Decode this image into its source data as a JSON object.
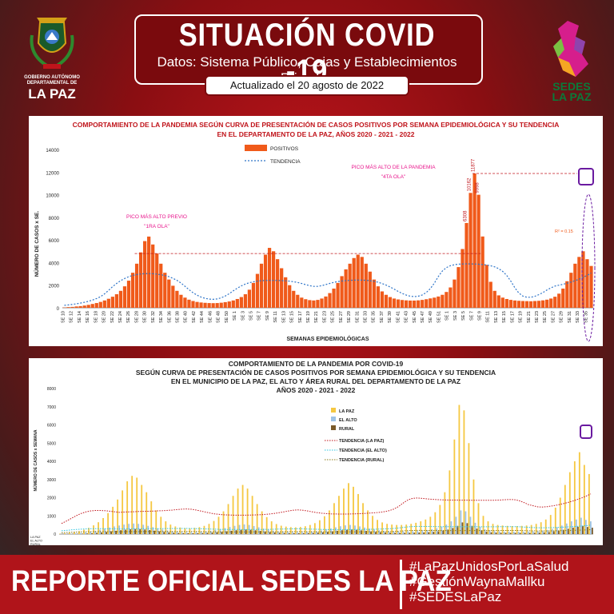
{
  "header": {
    "title": "SITUACIÓN COVID -19",
    "subtitle": "Datos: Sistema Público, Cajas y Establecimientos Privados",
    "updated": "Actualizado el  20  agosto de 2022"
  },
  "left_logo": {
    "caption_1": "GOBIERNO AUTÓNOMO",
    "caption_2": "DEPARTAMENTAL DE",
    "name": "LA PAZ"
  },
  "right_logo": {
    "name_1": "SEDES",
    "name_2": "LA PAZ"
  },
  "footer": {
    "text": "REPORTE OFICIAL SEDES LA PAZ",
    "hashtags": [
      "#LaPazUnidosPorLaSalud",
      "#GestiónWaynaMallku",
      "#SEDESLaPaz"
    ]
  },
  "colors": {
    "bg_red": "#c0141b",
    "bar_orange": "#f05a1a",
    "bar_yellow": "#f5c842",
    "bar_blue": "#9ec3e6",
    "bar_brown": "#7a5a2a",
    "annotation_pink": "#e8158c",
    "trend_blue": "#2e74c8"
  },
  "chart_data": [
    {
      "type": "bar",
      "title_1": "COMPORTAMIENTO DE LA PANDEMIA SEGÚN CURVA DE PRESENTACIÓN DE CASOS POSITIVOS POR SEMANA EPIDEMIOLÓGICA Y SU TENDENCIA",
      "title_2": "EN EL DEPARTAMENTO DE LA PAZ, AÑOS 2020 - 2021 - 2022",
      "ylabel": "NÚMERO DE CASOS x SE.",
      "xlabel": "SEMANAS EPIDEMIOLÓGICAS",
      "ylim": [
        0,
        14000
      ],
      "yticks": [
        0,
        2000,
        4000,
        6000,
        8000,
        10000,
        12000,
        14000
      ],
      "legend": {
        "bars": "POSITIVOS",
        "trend": "TENDENCIA"
      },
      "annotations": {
        "peak1_line1": "PICO MÁS ALTO PREVIO",
        "peak1_line2": "\"1RA OLA\"",
        "peak4_line1": "PICO MÁS ALTO DE LA PANDEMIA",
        "peak4_line2": "\"4TA OLA\"",
        "r2": "R² = 0.15",
        "peak_value": "11877",
        "peak_value_2": "10162",
        "peak_value_3": "9998",
        "peak_value_4": "6308"
      },
      "x_tick_labels": [
        "SE 10",
        "SE 12",
        "SE 14",
        "SE 16",
        "SE 18",
        "SE 20",
        "SE 22",
        "SE 24",
        "SE 26",
        "SE 28",
        "SE 30",
        "SE 32",
        "SE 34",
        "SE 36",
        "SE 38",
        "SE 40",
        "SE 42",
        "SE 44",
        "SE 46",
        "SE 48",
        "SE 50",
        "SE 1",
        "SE 3",
        "SE 5",
        "SE 7",
        "SE 9",
        "SE 11",
        "SE 13",
        "SE 15",
        "SE 17",
        "SE 19",
        "SE 21",
        "SE 23",
        "SE 25",
        "SE 27",
        "SE 29",
        "SE 31",
        "SE 33",
        "SE 35",
        "SE 37",
        "SE 39",
        "SE 41",
        "SE 43",
        "SE 45",
        "SE 47",
        "SE 49",
        "SE 51",
        "SE 1",
        "SE 3",
        "SE 5",
        "SE 7",
        "SE 9",
        "SE 11",
        "SE 13",
        "SE 15",
        "SE 17",
        "SE 19",
        "SE 21",
        "SE 23",
        "SE 25",
        "SE 27",
        "SE 29",
        "SE 31",
        "SE 33",
        "SE 35"
      ],
      "values": [
        30,
        60,
        80,
        120,
        150,
        200,
        260,
        340,
        420,
        520,
        650,
        800,
        980,
        1200,
        1500,
        1900,
        2400,
        3100,
        3900,
        4900,
        5900,
        6300,
        5600,
        4800,
        3900,
        3100,
        2500,
        1950,
        1500,
        1150,
        900,
        720,
        600,
        520,
        470,
        440,
        420,
        410,
        420,
        450,
        500,
        560,
        650,
        780,
        950,
        1200,
        1600,
        2200,
        3000,
        3900,
        4700,
        5300,
        5000,
        4300,
        3500,
        2700,
        2000,
        1500,
        1150,
        900,
        760,
        680,
        650,
        700,
        820,
        1000,
        1300,
        1700,
        2200,
        2800,
        3400,
        3900,
        4400,
        4700,
        4500,
        3900,
        3200,
        2500,
        1900,
        1450,
        1150,
        950,
        820,
        740,
        690,
        660,
        640,
        640,
        660,
        700,
        760,
        830,
        900,
        1000,
        1150,
        1400,
        1800,
        2500,
        3600,
        5200,
        7500,
        10162,
        11877,
        9998,
        6308,
        3800,
        2300,
        1500,
        1100,
        900,
        780,
        700,
        650,
        620,
        600,
        590,
        580,
        600,
        620,
        660,
        720,
        820,
        980,
        1250,
        1700,
        2350,
        3100,
        3900,
        4500,
        5000,
        4300,
        3700
      ]
    },
    {
      "type": "bar",
      "title_1": "COMPORTAMIENTO DE LA PANDEMIA POR COVID-19",
      "title_2": "SEGÚN CURVA DE PRESENTACIÓN DE CASOS POSITIVOS POR SEMANA EPIDEMIOLÓGICA Y SU TENDENCIA",
      "title_3": "EN EL  MUNICIPIO DE LA PAZ, EL ALTO Y ÁREA RURAL DEL DEPARTAMENTO DE LA PAZ",
      "title_4": "AÑOS 2020 - 2021 - 2022",
      "ylabel": "NÚMERO DE CASOS x SEMANA",
      "ylim": [
        0,
        8000
      ],
      "yticks": [
        0,
        1000,
        2000,
        3000,
        4000,
        5000,
        6000,
        7000,
        8000
      ],
      "row_labels": [
        "LA PAZ",
        "EL ALTO",
        "RURAL"
      ],
      "series": [
        {
          "name": "LA PAZ",
          "values": [
            20,
            40,
            70,
            110,
            160,
            240,
            340,
            480,
            650,
            880,
            1150,
            1500,
            1900,
            2400,
            2900,
            3200,
            3100,
            2700,
            2300,
            1800,
            1300,
            950,
            700,
            520,
            420,
            360,
            330,
            320,
            340,
            380,
            450,
            560,
            720,
            950,
            1250,
            1650,
            2100,
            2500,
            2700,
            2500,
            2100,
            1650,
            1250,
            930,
            700,
            550,
            460,
            410,
            380,
            370,
            390,
            430,
            500,
            600,
            760,
            980,
            1300,
            1700,
            2100,
            2500,
            2800,
            2600,
            2200,
            1700,
            1300,
            1000,
            780,
            640,
            560,
            520,
            500,
            500,
            520,
            560,
            620,
            700,
            800,
            950,
            1200,
            1600,
            2300,
            3500,
            5200,
            7100,
            6800,
            5000,
            3000,
            1700,
            1000,
            700,
            560,
            500,
            470,
            450,
            440,
            440,
            450,
            470,
            500,
            560,
            650,
            800,
            1050,
            1450,
            2000,
            2700,
            3400,
            4000,
            4500,
            3800,
            3300
          ]
        },
        {
          "name": "EL ALTO",
          "values": [
            10,
            15,
            25,
            40,
            60,
            90,
            130,
            180,
            240,
            300,
            360,
            420,
            470,
            520,
            560,
            580,
            560,
            510,
            450,
            380,
            310,
            250,
            200,
            160,
            130,
            110,
            100,
            100,
            110,
            125,
            150,
            180,
            220,
            270,
            330,
            390,
            450,
            500,
            530,
            500,
            440,
            370,
            300,
            240,
            190,
            155,
            130,
            115,
            105,
            100,
            105,
            115,
            135,
            160,
            200,
            250,
            310,
            370,
            430,
            480,
            500,
            470,
            420,
            360,
            300,
            250,
            210,
            180,
            160,
            150,
            145,
            145,
            150,
            160,
            175,
            195,
            225,
            265,
            320,
            400,
            520,
            700,
            950,
            1300,
            1250,
            950,
            620,
            400,
            270,
            200,
            165,
            150,
            140,
            135,
            133,
            133,
            135,
            140,
            150,
            165,
            190,
            230,
            290,
            370,
            470,
            580,
            700,
            800,
            900,
            780,
            700
          ]
        },
        {
          "name": "RURAL",
          "values": [
            5,
            8,
            12,
            18,
            25,
            35,
            50,
            70,
            95,
            120,
            150,
            180,
            210,
            240,
            265,
            280,
            270,
            250,
            220,
            185,
            150,
            120,
            95,
            75,
            60,
            52,
            48,
            47,
            50,
            57,
            68,
            82,
            100,
            122,
            150,
            180,
            210,
            235,
            250,
            235,
            205,
            170,
            138,
            110,
            88,
            72,
            62,
            56,
            52,
            50,
            52,
            57,
            66,
            78,
            96,
            120,
            150,
            180,
            210,
            235,
            248,
            232,
            205,
            175,
            145,
            120,
            100,
            86,
            77,
            72,
            70,
            70,
            72,
            77,
            84,
            93,
            107,
            126,
            152,
            190,
            245,
            330,
            450,
            640,
            600,
            450,
            300,
            195,
            132,
            98,
            80,
            72,
            68,
            66,
            65,
            65,
            66,
            69,
            74,
            82,
            94,
            114,
            144,
            184,
            234,
            290,
            350,
            400,
            450,
            390,
            350
          ]
        }
      ],
      "trends": [
        "TENDENCIA (LA PAZ)",
        "TENDENCIA (EL ALTO)",
        "TENDENCIA (RURAL)"
      ]
    }
  ]
}
